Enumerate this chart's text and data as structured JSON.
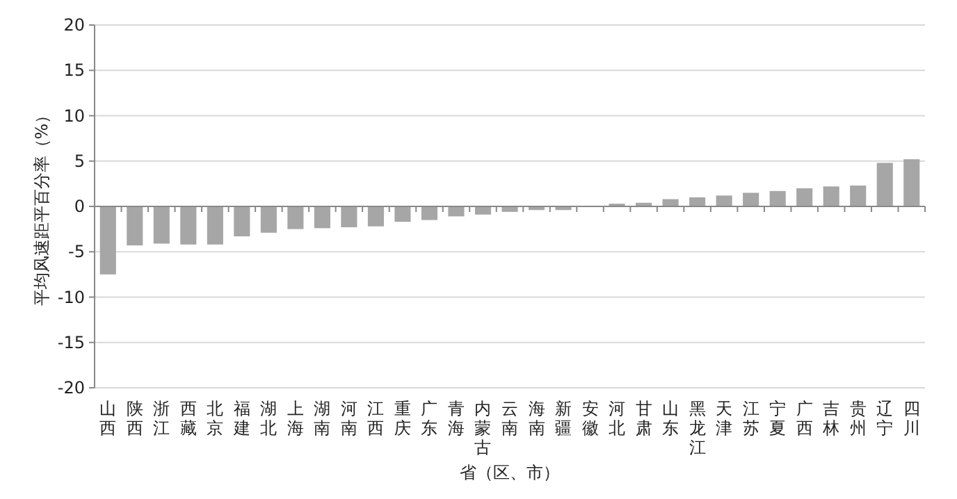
{
  "chart_data": {
    "type": "bar",
    "xlabel": "省（区、市）",
    "ylabel": "平均风速距平百分率（%）",
    "categories": [
      "山西",
      "陕西",
      "浙江",
      "西藏",
      "北京",
      "福建",
      "湖北",
      "上海",
      "湖南",
      "河南",
      "江西",
      "重庆",
      "广东",
      "青海",
      "内蒙古",
      "云南",
      "海南",
      "新疆",
      "安徽",
      "河北",
      "甘肃",
      "山东",
      "黑龙江",
      "天津",
      "江苏",
      "宁夏",
      "广西",
      "吉林",
      "贵州",
      "辽宁",
      "四川"
    ],
    "values": [
      -7.5,
      -4.3,
      -4.1,
      -4.2,
      -4.2,
      -3.3,
      -2.9,
      -2.5,
      -2.4,
      -2.3,
      -2.2,
      -1.7,
      -1.5,
      -1.1,
      -0.9,
      -0.6,
      -0.4,
      -0.4,
      0,
      0.3,
      0.4,
      0.8,
      1.0,
      1.2,
      1.5,
      1.7,
      2.0,
      2.2,
      2.3,
      4.8,
      5.2
    ],
    "color": "#a6a6a6",
    "ylim": [
      -20,
      20
    ],
    "yticks": [
      -20,
      -15,
      -10,
      -5,
      0,
      5,
      10,
      15,
      20
    ],
    "grid": "y"
  }
}
